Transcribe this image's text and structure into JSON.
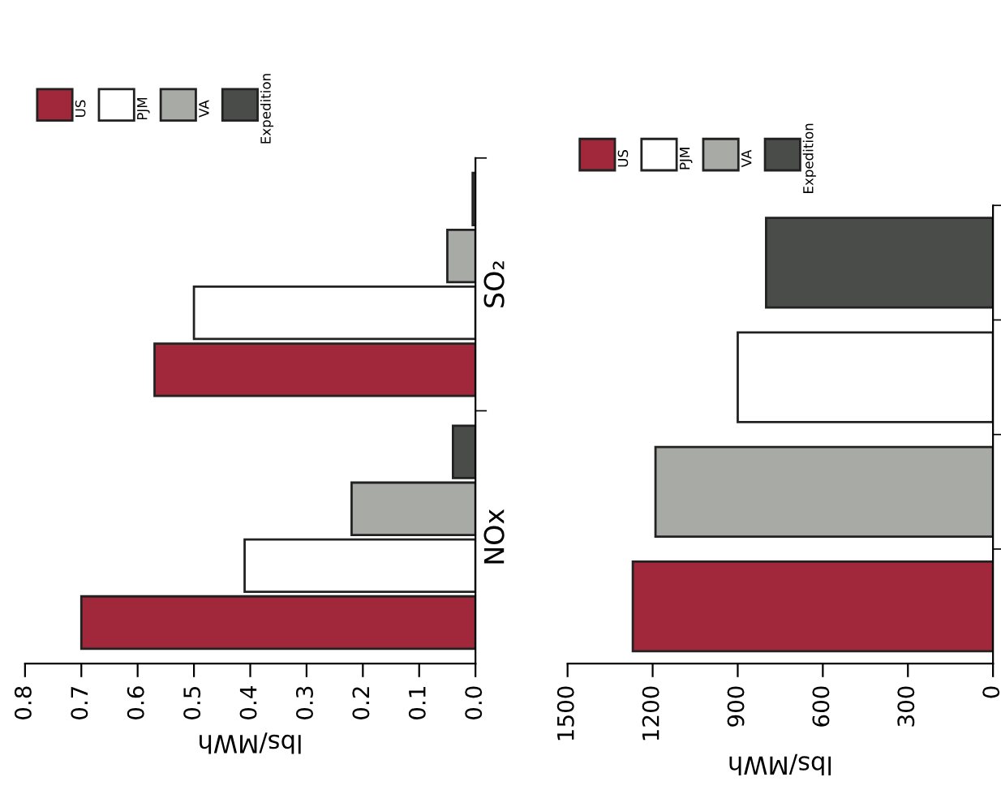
{
  "chart_data": [
    {
      "type": "bar",
      "orientation": "horizontal",
      "categories": [
        "SO₂",
        "NOx"
      ],
      "xlabel": "lbs/MWh",
      "xlim": [
        0.8,
        0.0
      ],
      "xticks": [
        {
          "value": 0.8,
          "label": "0.8"
        },
        {
          "value": 0.7,
          "label": "0.7"
        },
        {
          "value": 0.6,
          "label": "0.6"
        },
        {
          "value": 0.5,
          "label": "0.5"
        },
        {
          "value": 0.4,
          "label": "0.4"
        },
        {
          "value": 0.3,
          "label": "0.3"
        },
        {
          "value": 0.2,
          "label": "0.2"
        },
        {
          "value": 0.1,
          "label": "0.1"
        },
        {
          "value": 0.0,
          "label": "0.0"
        }
      ],
      "legend": "top",
      "grid": false,
      "series": [
        {
          "name": "US",
          "color": "#a0283a",
          "values": [
            0.57,
            0.7
          ]
        },
        {
          "name": "PJM",
          "color": "#ffffff",
          "values": [
            0.5,
            0.41
          ]
        },
        {
          "name": "VA",
          "color": "#a8aaa6",
          "values": [
            0.05,
            0.22
          ]
        },
        {
          "name": "Expedition",
          "color": "#4a4c4a",
          "values": [
            0.005,
            0.04
          ]
        }
      ]
    },
    {
      "type": "bar",
      "orientation": "horizontal",
      "stacked": true,
      "categories": [
        null,
        null,
        null,
        null
      ],
      "xlabel": "lbs/MWh",
      "xlim": [
        1500,
        0
      ],
      "xticks": [
        1500,
        1200,
        900,
        600,
        300,
        0
      ],
      "legend": "top",
      "grid": false,
      "series": [
        {
          "name": "US",
          "color": "#a0283a",
          "values": [
            null,
            null,
            null,
            1270
          ]
        },
        {
          "name": "PJM",
          "color": "#ffffff",
          "values": [
            null,
            900,
            null,
            null
          ]
        },
        {
          "name": "VA",
          "color": "#a8aaa6",
          "values": [
            null,
            null,
            1190,
            null
          ]
        },
        {
          "name": "Expedition",
          "color": "#4a4c4a",
          "values": [
            800,
            null,
            null,
            null
          ]
        }
      ]
    }
  ]
}
